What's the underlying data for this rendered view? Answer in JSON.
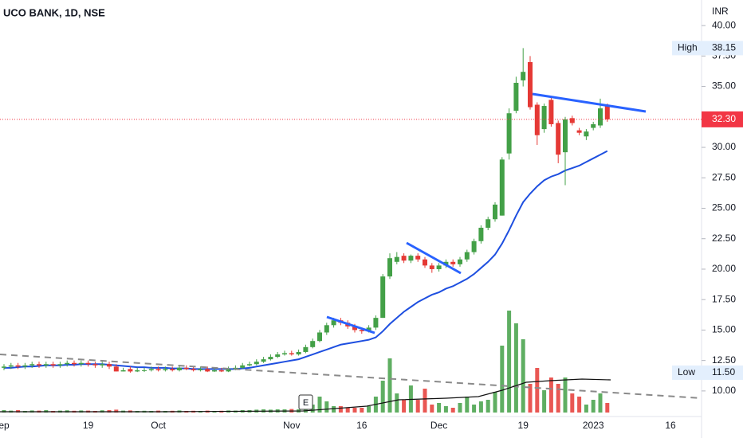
{
  "chart_data": {
    "type": "candlestick",
    "title": "UCO BANK, 1D, NSE",
    "currency": "INR",
    "categories": [
      "ep",
      null,
      null,
      null,
      null,
      null,
      null,
      null,
      null,
      null,
      null,
      null,
      "19",
      null,
      null,
      null,
      null,
      null,
      null,
      null,
      null,
      null,
      "Oct",
      null,
      null,
      null,
      null,
      null,
      null,
      null,
      null,
      null,
      null,
      null,
      null,
      null,
      null,
      null,
      null,
      null,
      null,
      "Nov",
      null,
      null,
      null,
      null,
      null,
      null,
      null,
      null,
      null,
      "16",
      null,
      null,
      null,
      null,
      null,
      null,
      null,
      null,
      null,
      null,
      "Dec",
      null,
      null,
      null,
      null,
      null,
      null,
      null,
      null,
      null,
      null,
      null,
      "19",
      null,
      null,
      null,
      null,
      null,
      null,
      null,
      null,
      null,
      "2023",
      null,
      null,
      null,
      null,
      null,
      null,
      null,
      null,
      null,
      null,
      "16"
    ],
    "open": [
      11.9,
      12.0,
      12.1,
      12.0,
      12.1,
      12.2,
      12.1,
      12.2,
      12.1,
      12.2,
      12.3,
      12.2,
      12.3,
      12.2,
      12.1,
      12.2,
      12.0,
      11.6,
      11.8,
      11.6,
      11.7,
      11.7,
      11.8,
      11.7,
      11.8,
      11.7,
      11.9,
      11.8,
      11.7,
      11.8,
      11.6,
      11.7,
      11.6,
      11.8,
      11.9,
      12.1,
      12.2,
      12.4,
      12.6,
      12.8,
      13.0,
      13.1,
      13.0,
      13.2,
      13.6,
      14.1,
      14.8,
      15.4,
      15.8,
      15.6,
      15.3,
      15.0,
      14.9,
      15.2,
      16.0,
      19.4,
      20.6,
      21.1,
      20.7,
      21.1,
      20.8,
      20.3,
      20.0,
      20.3,
      20.6,
      20.4,
      20.8,
      21.4,
      22.3,
      23.4,
      24.1,
      24.4,
      29.5,
      33.0,
      35.5,
      37.0,
      33.5,
      31.5,
      33.9,
      32.0,
      29.6,
      32.4,
      31.4,
      30.9,
      31.6,
      31.8,
      33.5,
      null,
      null,
      null,
      null,
      null,
      null,
      null,
      null,
      null
    ],
    "high": [
      12.2,
      12.3,
      12.3,
      12.3,
      12.4,
      12.4,
      12.4,
      12.4,
      12.4,
      12.5,
      12.5,
      12.5,
      12.5,
      12.4,
      12.4,
      12.4,
      12.2,
      11.9,
      12.0,
      11.9,
      11.9,
      12.0,
      12.0,
      12.0,
      12.0,
      12.1,
      12.1,
      12.0,
      12.0,
      12.0,
      11.9,
      11.9,
      12.0,
      12.1,
      12.3,
      12.4,
      12.6,
      12.8,
      13.0,
      13.2,
      13.3,
      13.3,
      13.4,
      13.8,
      14.3,
      15.0,
      15.6,
      16.0,
      16.0,
      15.8,
      15.5,
      15.2,
      15.4,
      16.2,
      19.6,
      21.3,
      21.4,
      21.3,
      21.2,
      21.3,
      21.0,
      20.5,
      20.5,
      20.8,
      20.8,
      21.0,
      21.6,
      22.5,
      23.6,
      24.3,
      25.5,
      29.2,
      33.2,
      35.8,
      38.15,
      37.5,
      33.7,
      33.6,
      34.1,
      32.2,
      32.5,
      32.6,
      31.6,
      31.5,
      32.1,
      34.0,
      33.6,
      null,
      null,
      null,
      null,
      null,
      null,
      null,
      null,
      null
    ],
    "low": [
      11.7,
      11.8,
      11.8,
      11.8,
      11.9,
      11.9,
      11.9,
      11.9,
      11.9,
      12.0,
      12.0,
      12.0,
      12.0,
      11.9,
      11.9,
      11.8,
      11.6,
      11.6,
      11.5,
      11.55,
      11.55,
      11.6,
      11.6,
      11.6,
      11.6,
      11.6,
      11.7,
      11.6,
      11.6,
      11.55,
      11.55,
      11.55,
      11.55,
      11.7,
      11.8,
      12.0,
      12.1,
      12.3,
      12.5,
      12.7,
      12.9,
      12.9,
      12.9,
      13.1,
      13.5,
      14.0,
      14.6,
      15.2,
      15.4,
      15.1,
      14.8,
      14.7,
      14.8,
      15.0,
      16.0,
      19.2,
      20.4,
      20.5,
      20.5,
      20.6,
      20.1,
      19.7,
      19.8,
      20.1,
      20.2,
      20.2,
      20.6,
      21.2,
      22.1,
      23.2,
      23.9,
      24.4,
      29.0,
      32.8,
      35.0,
      33.1,
      30.2,
      31.2,
      31.7,
      28.7,
      26.9,
      31.8,
      31.0,
      30.6,
      31.4,
      31.6,
      32.1,
      null,
      null,
      null,
      null,
      null,
      null,
      null,
      null,
      null
    ],
    "close": [
      12.0,
      12.1,
      12.0,
      12.1,
      12.2,
      12.1,
      12.2,
      12.1,
      12.2,
      12.3,
      12.2,
      12.3,
      12.2,
      12.1,
      12.2,
      12.0,
      11.6,
      11.7,
      11.6,
      11.7,
      11.7,
      11.8,
      11.7,
      11.8,
      11.7,
      11.9,
      11.8,
      11.7,
      11.8,
      11.6,
      11.7,
      11.6,
      11.8,
      11.9,
      12.1,
      12.2,
      12.4,
      12.6,
      12.8,
      13.0,
      13.1,
      13.0,
      13.2,
      13.6,
      14.1,
      14.8,
      15.4,
      15.8,
      15.6,
      15.3,
      15.0,
      14.9,
      15.2,
      16.0,
      19.4,
      20.9,
      21.0,
      20.7,
      21.1,
      20.8,
      20.3,
      20.0,
      20.3,
      20.6,
      20.4,
      20.8,
      21.4,
      22.3,
      23.4,
      24.1,
      25.3,
      29.0,
      32.8,
      35.3,
      36.2,
      33.3,
      31.0,
      33.4,
      31.9,
      29.4,
      32.3,
      32.0,
      31.2,
      31.3,
      31.9,
      33.2,
      32.3,
      null,
      null,
      null,
      null,
      null,
      null,
      null,
      null,
      null
    ],
    "volume": [
      1.5,
      1.2,
      1.5,
      1.0,
      1.3,
      1.2,
      1.5,
      1.0,
      1.2,
      1.4,
      1.1,
      1.3,
      1.2,
      1.0,
      1.4,
      1.5,
      1.8,
      1.2,
      1.3,
      1.0,
      1.1,
      1.0,
      1.2,
      1.0,
      1.1,
      1.3,
      1.0,
      1.1,
      1.0,
      1.2,
      1.0,
      1.1,
      1.3,
      1.2,
      1.5,
      1.5,
      1.8,
      2.0,
      1.8,
      2.0,
      2.0,
      2.2,
      2.0,
      3,
      5,
      10,
      7,
      4,
      4,
      3,
      3,
      3,
      4,
      10,
      20,
      34,
      12,
      8,
      17,
      8,
      15,
      5,
      6,
      4,
      3,
      6,
      10,
      5,
      7,
      8,
      13,
      42,
      64,
      56,
      46,
      18,
      28,
      14,
      22,
      18,
      22,
      12,
      10,
      5,
      8,
      12,
      6,
      null,
      null,
      null,
      null,
      null,
      null,
      null,
      null,
      null
    ],
    "ma": {
      "color": "#1e4fe0",
      "values": [
        11.9,
        11.9,
        11.95,
        12.0,
        12.0,
        12.05,
        12.1,
        12.1,
        12.1,
        12.15,
        12.15,
        12.2,
        12.2,
        12.2,
        12.2,
        12.15,
        12.1,
        12.05,
        12.0,
        11.95,
        11.95,
        11.9,
        11.9,
        11.9,
        11.85,
        11.85,
        11.85,
        11.8,
        11.8,
        11.8,
        11.8,
        11.8,
        11.8,
        11.8,
        11.85,
        11.9,
        12.0,
        12.1,
        12.2,
        12.3,
        12.4,
        12.5,
        12.6,
        12.8,
        13.0,
        13.2,
        13.4,
        13.6,
        13.8,
        13.9,
        14.0,
        14.1,
        14.2,
        14.4,
        14.9,
        15.5,
        16.0,
        16.5,
        16.9,
        17.3,
        17.6,
        17.9,
        18.1,
        18.4,
        18.6,
        18.9,
        19.2,
        19.6,
        20.1,
        20.6,
        21.2,
        22.1,
        23.2,
        24.4,
        25.5,
        26.2,
        26.8,
        27.3,
        27.6,
        27.8,
        28.1,
        28.3,
        28.5,
        28.8,
        29.1,
        29.4,
        29.7,
        null,
        null,
        null,
        null,
        null,
        null,
        null,
        null,
        null
      ]
    },
    "up_color": "#43a047",
    "down_color": "#e53935",
    "ylim": [
      7.9,
      42.1
    ],
    "yticks": [
      {
        "value": 10,
        "label": "10.00"
      },
      {
        "value": 12.5,
        "label": "12.50"
      },
      {
        "value": 15,
        "label": "15.00"
      },
      {
        "value": 17.5,
        "label": "17.50"
      },
      {
        "value": 20,
        "label": "20.00"
      },
      {
        "value": 22.5,
        "label": "22.50"
      },
      {
        "value": 25,
        "label": "25.00"
      },
      {
        "value": 27.5,
        "label": "27.50"
      },
      {
        "value": 30,
        "label": "30.00"
      },
      {
        "value": 35,
        "label": "35.00"
      },
      {
        "value": 37.5,
        "label": "37.50"
      },
      {
        "value": 40,
        "label": "40.00"
      }
    ],
    "high_marker": {
      "text": "High",
      "value": 38.15
    },
    "low_marker": {
      "text": "Low",
      "value": 11.5,
      "value_label": "11.50"
    },
    "last": {
      "value": 32.3,
      "value_label": "32.30",
      "color": "#f23645"
    },
    "event": {
      "label": "E"
    }
  }
}
